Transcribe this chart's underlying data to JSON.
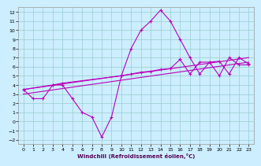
{
  "xlabel": "Windchill (Refroidissement éolien,°C)",
  "bg_color": "#cceeff",
  "grid_color": "#99cccc",
  "line_color": "#bb00bb",
  "xlim": [
    -0.5,
    23.5
  ],
  "ylim": [
    -2.5,
    12.5
  ],
  "xticks": [
    0,
    1,
    2,
    3,
    4,
    5,
    6,
    7,
    8,
    9,
    10,
    11,
    12,
    13,
    14,
    15,
    16,
    17,
    18,
    19,
    20,
    21,
    22,
    23
  ],
  "yticks": [
    -2,
    -1,
    0,
    1,
    2,
    3,
    4,
    5,
    6,
    7,
    8,
    9,
    10,
    11,
    12
  ],
  "line1_x": [
    0,
    1,
    2,
    3,
    4,
    5,
    6,
    7,
    8,
    9,
    10,
    11,
    12,
    13,
    14,
    15,
    16,
    17,
    18,
    19,
    20,
    21,
    22,
    23
  ],
  "line1_y": [
    3.5,
    2.5,
    2.5,
    4.0,
    4.0,
    2.5,
    1.0,
    0.5,
    -1.7,
    0.5,
    5.0,
    8.0,
    10.0,
    11.0,
    12.2,
    11.0,
    9.0,
    7.0,
    5.2,
    6.5,
    5.0,
    7.0,
    6.2,
    6.2
  ],
  "line2_x": [
    0,
    23
  ],
  "line2_y": [
    3.5,
    7.0
  ],
  "line3_x": [
    0,
    23
  ],
  "line3_y": [
    3.0,
    6.5
  ],
  "line4_x": [
    0,
    3,
    4,
    10,
    11,
    12,
    13,
    14,
    15,
    16,
    17,
    18,
    19,
    20,
    21,
    22,
    23
  ],
  "line4_y": [
    3.5,
    4.0,
    4.2,
    5.0,
    5.2,
    5.4,
    5.5,
    5.7,
    5.8,
    6.8,
    5.2,
    6.5,
    6.5,
    6.6,
    5.2,
    7.0,
    6.3
  ]
}
